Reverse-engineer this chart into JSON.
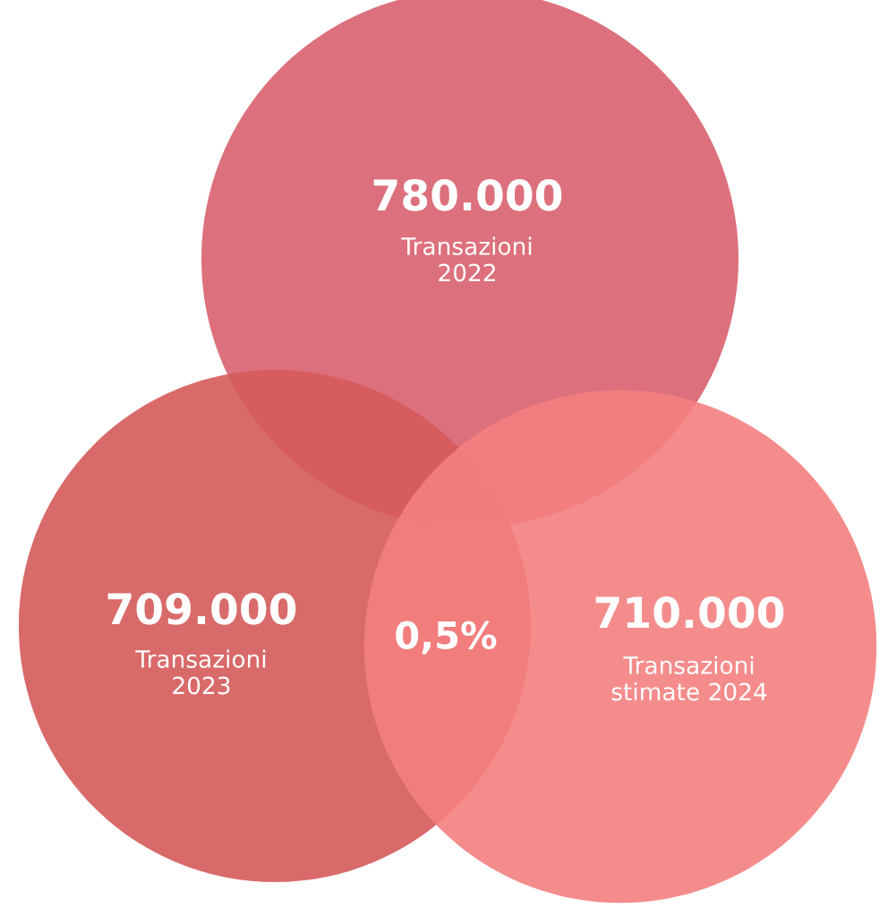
{
  "chart_data": {
    "type": "other",
    "categories": [
      "Transazioni\n2022",
      "Transazioni\n2023",
      "Transazioni\nstimate 2024"
    ],
    "values": [
      780000,
      709000,
      710000
    ],
    "value_labels": [
      "780.000",
      "709.000",
      "710.000"
    ],
    "colors": [
      "#d9606f",
      "#d55a5a",
      "#f47f7f"
    ],
    "annotations": [
      "0,5%"
    ]
  }
}
